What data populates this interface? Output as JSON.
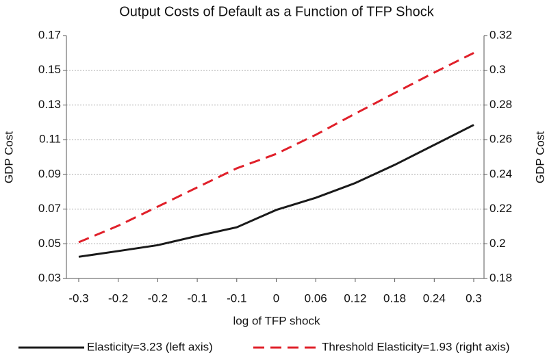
{
  "chart_data": {
    "type": "line",
    "title": "Output Costs of Default as a Function of TFP Shock",
    "xlabel": "log of TFP shock",
    "ylabel": "GDP Cost",
    "y2label": "GDP Cost",
    "categories": [
      "-0.3",
      "-0.2",
      "-0.2",
      "-0.1",
      "-0.1",
      "0",
      "0.06",
      "0.12",
      "0.18",
      "0.24",
      "0.3"
    ],
    "series": [
      {
        "name": "Elasticity=3.23 (left axis)",
        "color": "#1a1a1a",
        "dash": false,
        "values": [
          0.0425,
          0.0458,
          0.0492,
          0.0545,
          0.0595,
          0.0695,
          0.0765,
          0.085,
          0.0955,
          0.107,
          0.1185
        ]
      },
      {
        "name": "Threshold Elasticity=1.93 (right axis)",
        "color": "#e0202a",
        "dash": true,
        "axis": "y2",
        "values": [
          0.2009,
          0.2104,
          0.2214,
          0.2325,
          0.2435,
          0.2518,
          0.2628,
          0.275,
          0.2869,
          0.2987,
          0.31
        ]
      }
    ],
    "ylim": [
      0.03,
      0.17
    ],
    "yticks": [
      0.03,
      0.05,
      0.07,
      0.09,
      0.11,
      0.13,
      0.15,
      0.17
    ],
    "y2lim": [
      0.18,
      0.32
    ],
    "y2ticks": [
      0.18,
      0.2,
      0.22,
      0.24,
      0.26,
      0.28,
      0.3,
      0.32
    ],
    "grid": true,
    "legend": "bottom"
  }
}
